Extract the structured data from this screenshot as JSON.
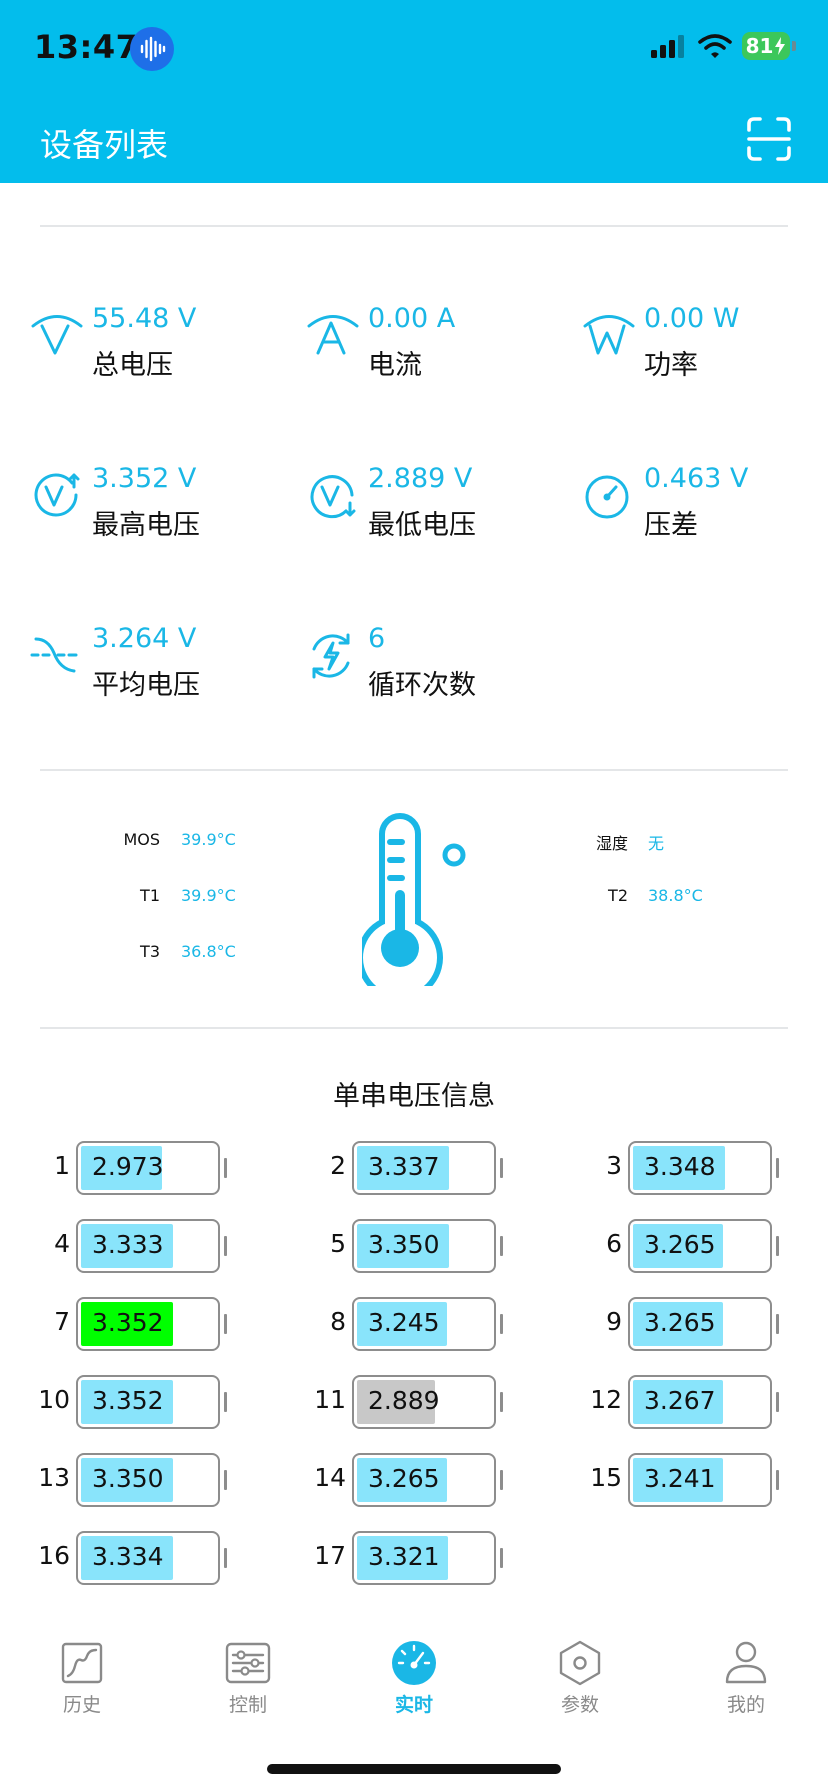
{
  "status_bar": {
    "time": "13:47",
    "battery_level": "81"
  },
  "header": {
    "title": "设备列表"
  },
  "metrics": [
    {
      "value": "55.48 V",
      "label": "总电压",
      "icon": "voltage-icon"
    },
    {
      "value": "0.00 A",
      "label": "电流",
      "icon": "current-icon"
    },
    {
      "value": "0.00 W",
      "label": "功率",
      "icon": "power-icon"
    },
    {
      "value": "3.352 V",
      "label": "最高电压",
      "icon": "max-voltage-icon"
    },
    {
      "value": "2.889 V",
      "label": "最低电压",
      "icon": "min-voltage-icon"
    },
    {
      "value": "0.463 V",
      "label": "压差",
      "icon": "gauge-icon"
    },
    {
      "value": "3.264 V",
      "label": "平均电压",
      "icon": "average-wave-icon"
    },
    {
      "value": "6",
      "label": "循环次数",
      "icon": "cycle-bolt-icon"
    }
  ],
  "temperatures": {
    "mos": {
      "label": "MOS",
      "value": "39.9°C"
    },
    "t1": {
      "label": "T1",
      "value": "39.9°C"
    },
    "t3": {
      "label": "T3",
      "value": "36.8°C"
    },
    "humidity": {
      "label": "湿度",
      "value": "无"
    },
    "t2": {
      "label": "T2",
      "value": "38.8°C"
    }
  },
  "cells_title": "单串电压信息",
  "cells": [
    {
      "index": "1",
      "voltage": "2.973",
      "fill": 0.58,
      "status": "normal"
    },
    {
      "index": "2",
      "voltage": "3.337",
      "fill": 0.66,
      "status": "normal"
    },
    {
      "index": "3",
      "voltage": "3.348",
      "fill": 0.66,
      "status": "normal"
    },
    {
      "index": "4",
      "voltage": "3.333",
      "fill": 0.66,
      "status": "normal"
    },
    {
      "index": "5",
      "voltage": "3.350",
      "fill": 0.66,
      "status": "normal"
    },
    {
      "index": "6",
      "voltage": "3.265",
      "fill": 0.64,
      "status": "normal"
    },
    {
      "index": "7",
      "voltage": "3.352",
      "fill": 0.66,
      "status": "highest"
    },
    {
      "index": "8",
      "voltage": "3.245",
      "fill": 0.64,
      "status": "normal"
    },
    {
      "index": "9",
      "voltage": "3.265",
      "fill": 0.64,
      "status": "normal"
    },
    {
      "index": "10",
      "voltage": "3.352",
      "fill": 0.66,
      "status": "normal"
    },
    {
      "index": "11",
      "voltage": "2.889",
      "fill": 0.56,
      "status": "lowest"
    },
    {
      "index": "12",
      "voltage": "3.267",
      "fill": 0.64,
      "status": "normal"
    },
    {
      "index": "13",
      "voltage": "3.350",
      "fill": 0.66,
      "status": "normal"
    },
    {
      "index": "14",
      "voltage": "3.265",
      "fill": 0.64,
      "status": "normal"
    },
    {
      "index": "15",
      "voltage": "3.241",
      "fill": 0.64,
      "status": "normal"
    },
    {
      "index": "16",
      "voltage": "3.334",
      "fill": 0.66,
      "status": "normal"
    },
    {
      "index": "17",
      "voltage": "3.321",
      "fill": 0.65,
      "status": "normal"
    }
  ],
  "cell_colors": {
    "normal": "#89e4fb",
    "highest": "#00ff00",
    "lowest": "#c8c8c8"
  },
  "tabs": [
    {
      "label": "历史",
      "icon": "chart-line-icon",
      "active": false
    },
    {
      "label": "控制",
      "icon": "sliders-icon",
      "active": false
    },
    {
      "label": "实时",
      "icon": "speedometer-icon",
      "active": true
    },
    {
      "label": "参数",
      "icon": "hexagon-settings-icon",
      "active": false
    },
    {
      "label": "我的",
      "icon": "user-icon",
      "active": false
    }
  ],
  "colors": {
    "brand": "#03bdec",
    "accent_text": "#1ab7e6",
    "inactive": "#8a8a8a"
  }
}
